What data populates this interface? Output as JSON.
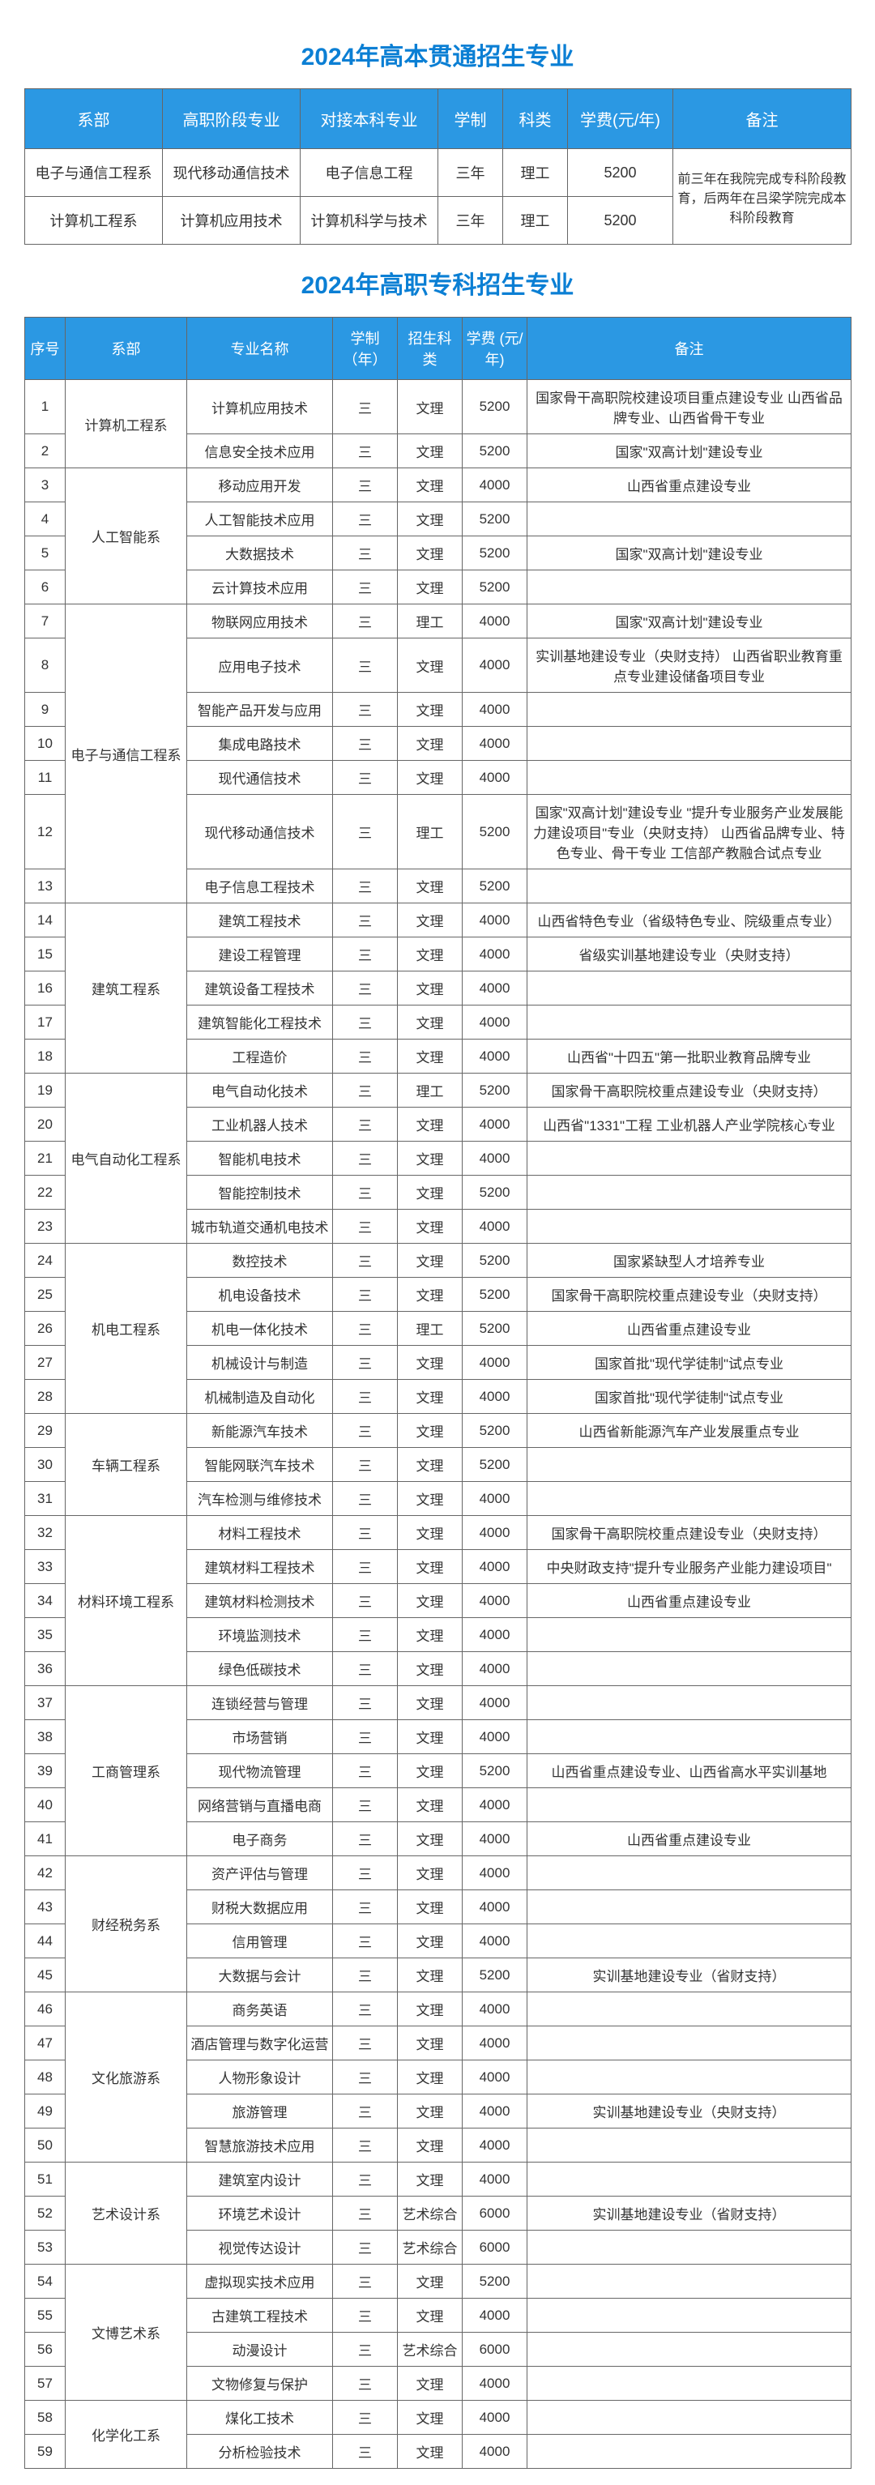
{
  "titles": {
    "t1": "2024年高本贯通招生专业",
    "t2": "2024年高职专科招生专业"
  },
  "t1": {
    "headers": [
      "系部",
      "高职阶段专业",
      "对接本科专业",
      "学制",
      "科类",
      "学费(元/年)",
      "备注"
    ],
    "cols": [
      170,
      170,
      170,
      80,
      80,
      130,
      220
    ],
    "rows": [
      {
        "dept": "电子与通信工程系",
        "major": "现代移动通信技术",
        "link": "电子信息工程",
        "dur": "三年",
        "cat": "理工",
        "fee": "5200"
      },
      {
        "dept": "计算机工程系",
        "major": "计算机应用技术",
        "link": "计算机科学与技术",
        "dur": "三年",
        "cat": "理工",
        "fee": "5200"
      }
    ],
    "remark": "前三年在我院完成专科阶段教育，后两年在吕梁学院完成本科阶段教育"
  },
  "t2": {
    "headers": [
      "序号",
      "系部",
      "专业名称",
      "学制（年）",
      "招生科类",
      "学费 (元/年)",
      "备注"
    ],
    "cols": [
      50,
      150,
      180,
      80,
      80,
      80,
      400
    ],
    "depts": [
      {
        "name": "计算机工程系",
        "rows": [
          {
            "n": "1",
            "m": "计算机应用技术",
            "d": "三",
            "c": "文理",
            "f": "5200",
            "r": "国家骨干高职院校建设项目重点建设专业 山西省品牌专业、山西省骨干专业"
          },
          {
            "n": "2",
            "m": "信息安全技术应用",
            "d": "三",
            "c": "文理",
            "f": "5200",
            "r": "国家\"双高计划\"建设专业"
          }
        ]
      },
      {
        "name": "人工智能系",
        "rows": [
          {
            "n": "3",
            "m": "移动应用开发",
            "d": "三",
            "c": "文理",
            "f": "4000",
            "r": "山西省重点建设专业"
          },
          {
            "n": "4",
            "m": "人工智能技术应用",
            "d": "三",
            "c": "文理",
            "f": "5200",
            "r": ""
          },
          {
            "n": "5",
            "m": "大数据技术",
            "d": "三",
            "c": "文理",
            "f": "5200",
            "r": "国家\"双高计划\"建设专业"
          },
          {
            "n": "6",
            "m": "云计算技术应用",
            "d": "三",
            "c": "文理",
            "f": "5200",
            "r": ""
          }
        ]
      },
      {
        "name": "电子与通信工程系",
        "rows": [
          {
            "n": "7",
            "m": "物联网应用技术",
            "d": "三",
            "c": "理工",
            "f": "4000",
            "r": "国家\"双高计划\"建设专业"
          },
          {
            "n": "8",
            "m": "应用电子技术",
            "d": "三",
            "c": "文理",
            "f": "4000",
            "r": "实训基地建设专业（央财支持） 山西省职业教育重点专业建设储备项目专业"
          },
          {
            "n": "9",
            "m": "智能产品开发与应用",
            "d": "三",
            "c": "文理",
            "f": "4000",
            "r": ""
          },
          {
            "n": "10",
            "m": "集成电路技术",
            "d": "三",
            "c": "文理",
            "f": "4000",
            "r": ""
          },
          {
            "n": "11",
            "m": "现代通信技术",
            "d": "三",
            "c": "文理",
            "f": "4000",
            "r": ""
          },
          {
            "n": "12",
            "m": "现代移动通信技术",
            "d": "三",
            "c": "理工",
            "f": "5200",
            "r": "国家\"双高计划\"建设专业 \"提升专业服务产业发展能力建设项目\"专业（央财支持） 山西省品牌专业、特色专业、骨干专业 工信部产教融合试点专业"
          },
          {
            "n": "13",
            "m": "电子信息工程技术",
            "d": "三",
            "c": "文理",
            "f": "5200",
            "r": ""
          }
        ]
      },
      {
        "name": "建筑工程系",
        "rows": [
          {
            "n": "14",
            "m": "建筑工程技术",
            "d": "三",
            "c": "文理",
            "f": "4000",
            "r": "山西省特色专业（省级特色专业、院级重点专业）"
          },
          {
            "n": "15",
            "m": "建设工程管理",
            "d": "三",
            "c": "文理",
            "f": "4000",
            "r": "省级实训基地建设专业（央财支持）"
          },
          {
            "n": "16",
            "m": "建筑设备工程技术",
            "d": "三",
            "c": "文理",
            "f": "4000",
            "r": ""
          },
          {
            "n": "17",
            "m": "建筑智能化工程技术",
            "d": "三",
            "c": "文理",
            "f": "4000",
            "r": ""
          },
          {
            "n": "18",
            "m": "工程造价",
            "d": "三",
            "c": "文理",
            "f": "4000",
            "r": "山西省\"十四五\"第一批职业教育品牌专业"
          }
        ]
      },
      {
        "name": "电气自动化工程系",
        "rows": [
          {
            "n": "19",
            "m": "电气自动化技术",
            "d": "三",
            "c": "理工",
            "f": "5200",
            "r": "国家骨干高职院校重点建设专业（央财支持）"
          },
          {
            "n": "20",
            "m": "工业机器人技术",
            "d": "三",
            "c": "文理",
            "f": "4000",
            "r": "山西省\"1331\"工程 工业机器人产业学院核心专业"
          },
          {
            "n": "21",
            "m": "智能机电技术",
            "d": "三",
            "c": "文理",
            "f": "4000",
            "r": ""
          },
          {
            "n": "22",
            "m": "智能控制技术",
            "d": "三",
            "c": "文理",
            "f": "5200",
            "r": ""
          },
          {
            "n": "23",
            "m": "城市轨道交通机电技术",
            "d": "三",
            "c": "文理",
            "f": "4000",
            "r": ""
          }
        ]
      },
      {
        "name": "机电工程系",
        "rows": [
          {
            "n": "24",
            "m": "数控技术",
            "d": "三",
            "c": "文理",
            "f": "5200",
            "r": "国家紧缺型人才培养专业"
          },
          {
            "n": "25",
            "m": "机电设备技术",
            "d": "三",
            "c": "文理",
            "f": "5200",
            "r": "国家骨干高职院校重点建设专业（央财支持）"
          },
          {
            "n": "26",
            "m": "机电一体化技术",
            "d": "三",
            "c": "理工",
            "f": "5200",
            "r": "山西省重点建设专业"
          },
          {
            "n": "27",
            "m": "机械设计与制造",
            "d": "三",
            "c": "文理",
            "f": "4000",
            "r": "国家首批\"现代学徒制\"试点专业"
          },
          {
            "n": "28",
            "m": "机械制造及自动化",
            "d": "三",
            "c": "文理",
            "f": "4000",
            "r": "国家首批\"现代学徒制\"试点专业"
          }
        ]
      },
      {
        "name": "车辆工程系",
        "rows": [
          {
            "n": "29",
            "m": "新能源汽车技术",
            "d": "三",
            "c": "文理",
            "f": "5200",
            "r": "山西省新能源汽车产业发展重点专业"
          },
          {
            "n": "30",
            "m": "智能网联汽车技术",
            "d": "三",
            "c": "文理",
            "f": "5200",
            "r": ""
          },
          {
            "n": "31",
            "m": "汽车检测与维修技术",
            "d": "三",
            "c": "文理",
            "f": "4000",
            "r": ""
          }
        ]
      },
      {
        "name": "材料环境工程系",
        "rows": [
          {
            "n": "32",
            "m": "材料工程技术",
            "d": "三",
            "c": "文理",
            "f": "4000",
            "r": "国家骨干高职院校重点建设专业（央财支持）"
          },
          {
            "n": "33",
            "m": "建筑材料工程技术",
            "d": "三",
            "c": "文理",
            "f": "4000",
            "r": "中央财政支持\"提升专业服务产业能力建设项目\""
          },
          {
            "n": "34",
            "m": "建筑材料检测技术",
            "d": "三",
            "c": "文理",
            "f": "4000",
            "r": "山西省重点建设专业"
          },
          {
            "n": "35",
            "m": "环境监测技术",
            "d": "三",
            "c": "文理",
            "f": "4000",
            "r": ""
          },
          {
            "n": "36",
            "m": "绿色低碳技术",
            "d": "三",
            "c": "文理",
            "f": "4000",
            "r": ""
          }
        ]
      },
      {
        "name": "工商管理系",
        "rows": [
          {
            "n": "37",
            "m": "连锁经营与管理",
            "d": "三",
            "c": "文理",
            "f": "4000",
            "r": ""
          },
          {
            "n": "38",
            "m": "市场营销",
            "d": "三",
            "c": "文理",
            "f": "4000",
            "r": ""
          },
          {
            "n": "39",
            "m": "现代物流管理",
            "d": "三",
            "c": "文理",
            "f": "5200",
            "r": "山西省重点建设专业、山西省高水平实训基地"
          },
          {
            "n": "40",
            "m": "网络营销与直播电商",
            "d": "三",
            "c": "文理",
            "f": "4000",
            "r": ""
          },
          {
            "n": "41",
            "m": "电子商务",
            "d": "三",
            "c": "文理",
            "f": "4000",
            "r": "山西省重点建设专业"
          }
        ]
      },
      {
        "name": "财经税务系",
        "rows": [
          {
            "n": "42",
            "m": "资产评估与管理",
            "d": "三",
            "c": "文理",
            "f": "4000",
            "r": ""
          },
          {
            "n": "43",
            "m": "财税大数据应用",
            "d": "三",
            "c": "文理",
            "f": "4000",
            "r": ""
          },
          {
            "n": "44",
            "m": "信用管理",
            "d": "三",
            "c": "文理",
            "f": "4000",
            "r": ""
          },
          {
            "n": "45",
            "m": "大数据与会计",
            "d": "三",
            "c": "文理",
            "f": "5200",
            "r": "实训基地建设专业（省财支持）"
          }
        ]
      },
      {
        "name": "文化旅游系",
        "rows": [
          {
            "n": "46",
            "m": "商务英语",
            "d": "三",
            "c": "文理",
            "f": "4000",
            "r": ""
          },
          {
            "n": "47",
            "m": "酒店管理与数字化运营",
            "d": "三",
            "c": "文理",
            "f": "4000",
            "r": ""
          },
          {
            "n": "48",
            "m": "人物形象设计",
            "d": "三",
            "c": "文理",
            "f": "4000",
            "r": ""
          },
          {
            "n": "49",
            "m": "旅游管理",
            "d": "三",
            "c": "文理",
            "f": "4000",
            "r": "实训基地建设专业（央财支持）"
          },
          {
            "n": "50",
            "m": "智慧旅游技术应用",
            "d": "三",
            "c": "文理",
            "f": "4000",
            "r": ""
          }
        ]
      },
      {
        "name": "艺术设计系",
        "rows": [
          {
            "n": "51",
            "m": "建筑室内设计",
            "d": "三",
            "c": "文理",
            "f": "4000",
            "r": ""
          },
          {
            "n": "52",
            "m": "环境艺术设计",
            "d": "三",
            "c": "艺术综合",
            "f": "6000",
            "r": "实训基地建设专业（省财支持）"
          },
          {
            "n": "53",
            "m": "视觉传达设计",
            "d": "三",
            "c": "艺术综合",
            "f": "6000",
            "r": ""
          }
        ]
      },
      {
        "name": "文博艺术系",
        "rows": [
          {
            "n": "54",
            "m": "虚拟现实技术应用",
            "d": "三",
            "c": "文理",
            "f": "5200",
            "r": ""
          },
          {
            "n": "55",
            "m": "古建筑工程技术",
            "d": "三",
            "c": "文理",
            "f": "4000",
            "r": ""
          },
          {
            "n": "56",
            "m": "动漫设计",
            "d": "三",
            "c": "艺术综合",
            "f": "6000",
            "r": ""
          },
          {
            "n": "57",
            "m": "文物修复与保护",
            "d": "三",
            "c": "文理",
            "f": "4000",
            "r": ""
          }
        ]
      },
      {
        "name": "化学化工系",
        "rows": [
          {
            "n": "58",
            "m": "煤化工技术",
            "d": "三",
            "c": "文理",
            "f": "4000",
            "r": ""
          },
          {
            "n": "59",
            "m": "分析检验技术",
            "d": "三",
            "c": "文理",
            "f": "4000",
            "r": ""
          }
        ]
      }
    ]
  }
}
